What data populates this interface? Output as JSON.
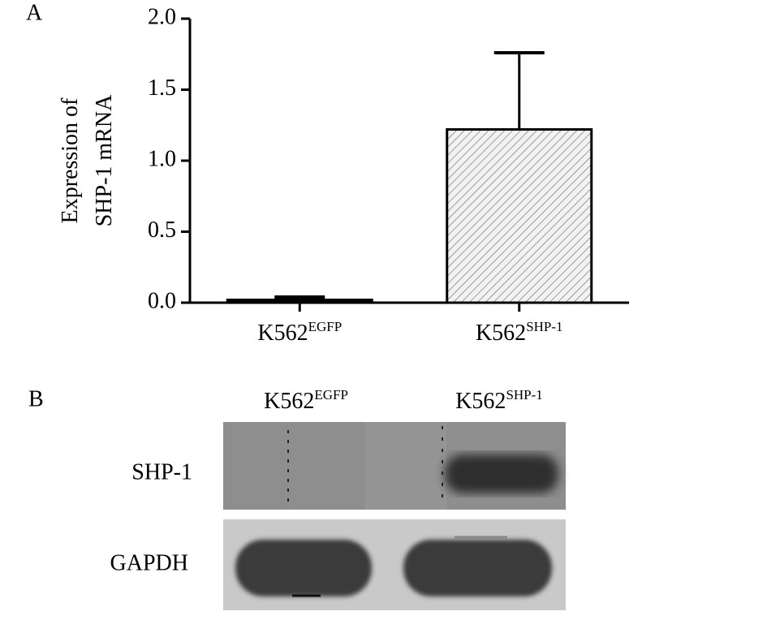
{
  "chart_data": {
    "type": "bar",
    "panel_label": "A",
    "y_label_lines": [
      "Expression of",
      "SHP-1 mRNA"
    ],
    "categories": [
      {
        "text": "K562",
        "sup": "EGFP"
      },
      {
        "text": "K562",
        "sup": "SHP-1"
      }
    ],
    "values": [
      0.02,
      1.22
    ],
    "errors": [
      0.02,
      0.54
    ],
    "bar_styles": [
      "solid",
      "hatched"
    ],
    "color": "#000000",
    "ylim": [
      0,
      2
    ],
    "yticks": [
      {
        "value": 0,
        "label": "0.0"
      },
      {
        "value": 0.5,
        "label": "0.5"
      },
      {
        "value": 1,
        "label": "1.0"
      },
      {
        "value": 1.5,
        "label": "1.5"
      },
      {
        "value": 2,
        "label": "2.0"
      }
    ]
  },
  "blot": {
    "panel_label": "B",
    "columns": [
      {
        "text": "K562",
        "sup": "EGFP"
      },
      {
        "text": "K562",
        "sup": "SHP-1"
      }
    ],
    "rows": [
      "SHP-1",
      "GAPDH"
    ]
  }
}
